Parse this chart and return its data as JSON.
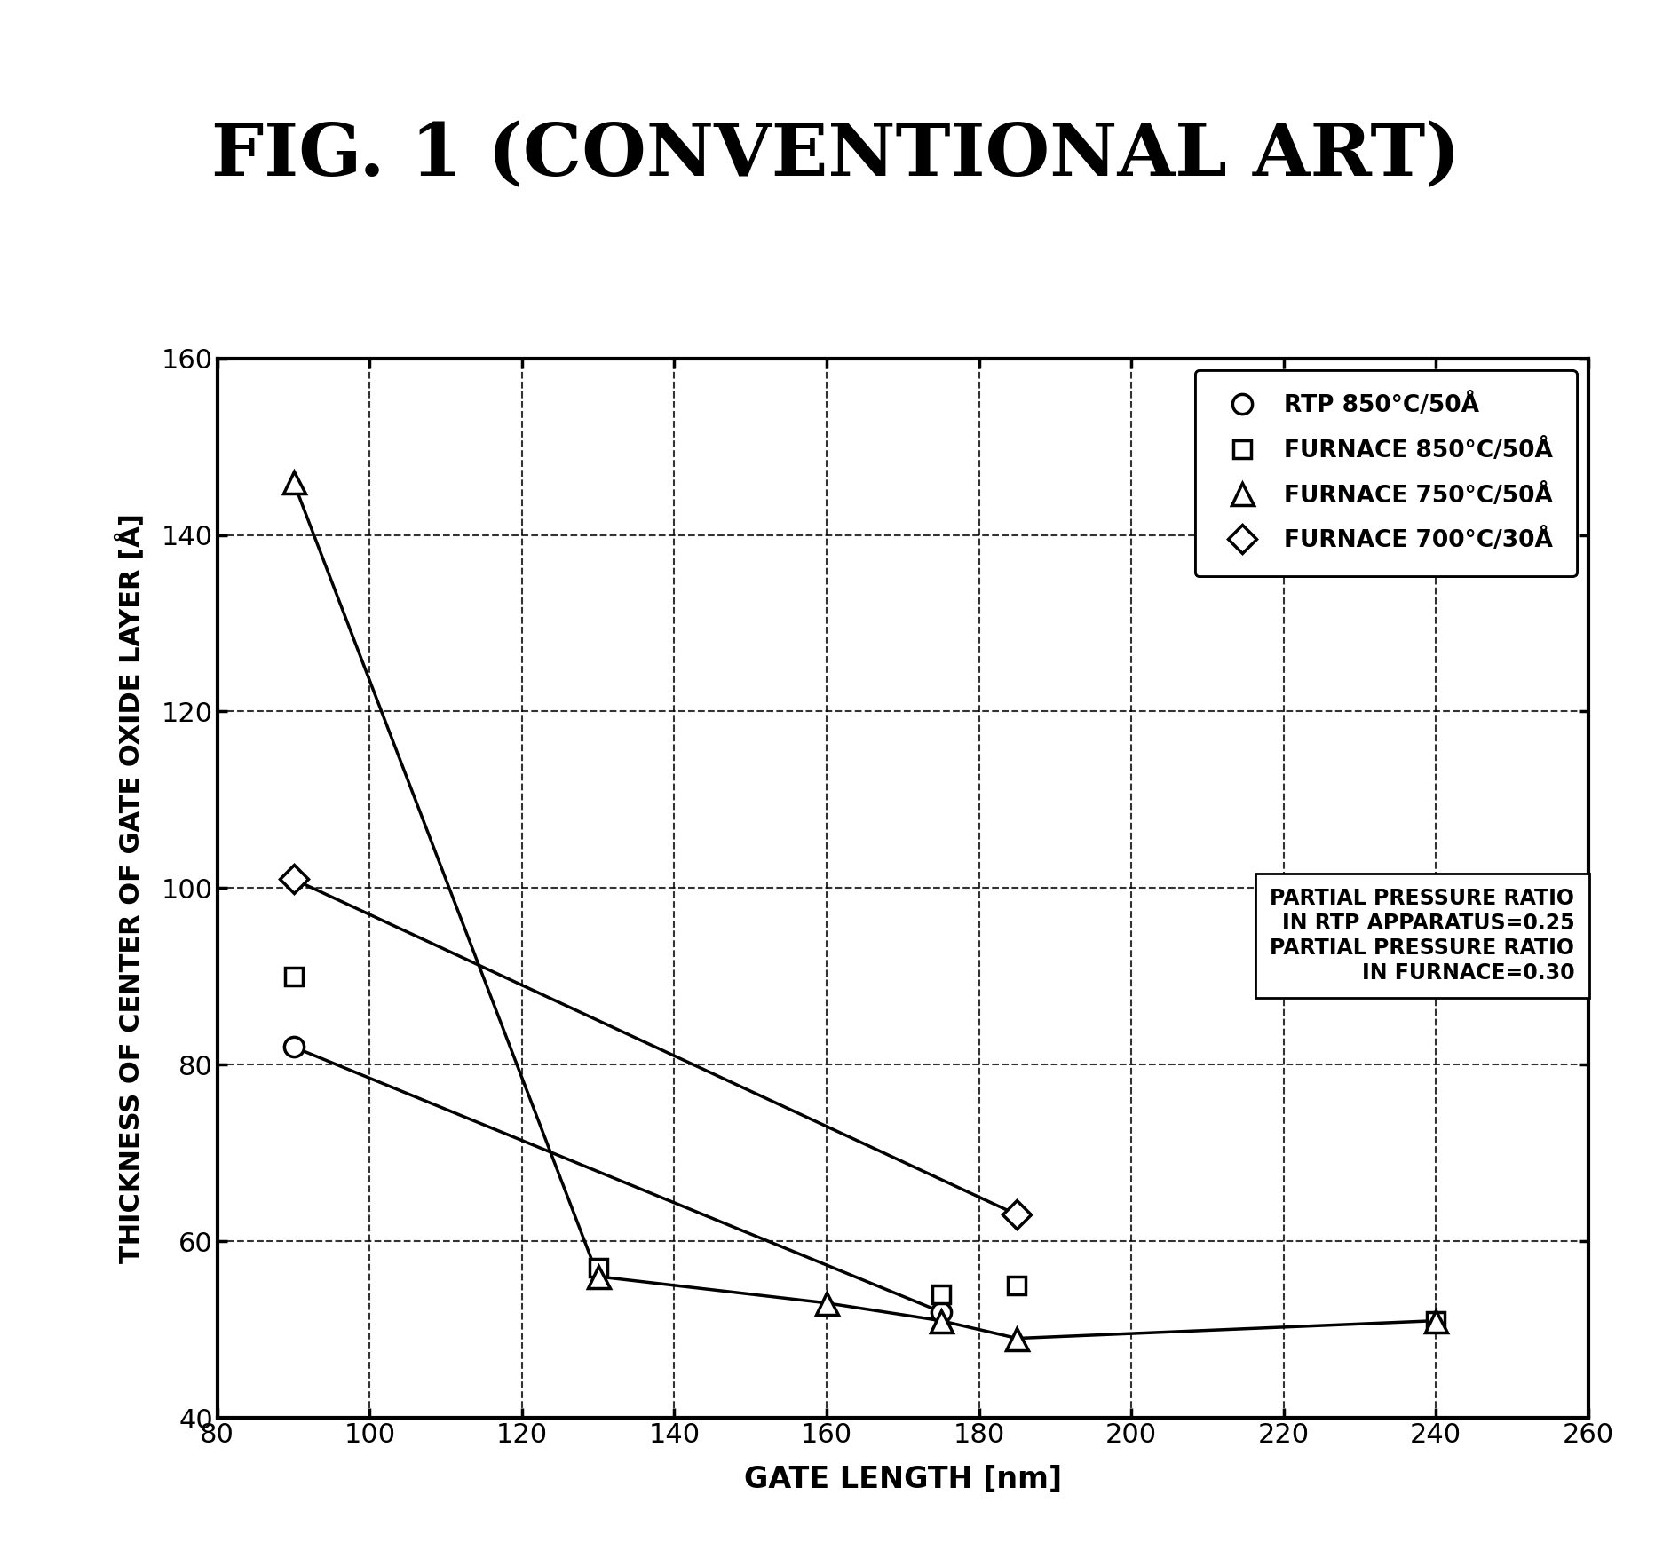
{
  "title": "FIG. 1 (CONVENTIONAL ART)",
  "xlabel": "GATE LENGTH [nm]",
  "ylabel": "THICKNESS OF CENTER OF GATE OXIDE LAYER [Å]",
  "xlim": [
    80,
    260
  ],
  "ylim": [
    40,
    160
  ],
  "xticks": [
    80,
    100,
    120,
    140,
    160,
    180,
    200,
    220,
    240,
    260
  ],
  "yticks": [
    40,
    60,
    80,
    100,
    120,
    140,
    160
  ],
  "series": [
    {
      "label": "RTP 850°C/50Å",
      "marker": "circle",
      "x": [
        90,
        175
      ],
      "y": [
        82,
        52
      ],
      "line": true
    },
    {
      "label": "FURNACE 850°C/50Å",
      "marker": "square",
      "x": [
        90,
        130,
        175,
        185,
        240
      ],
      "y": [
        90,
        57,
        54,
        55,
        51
      ],
      "line": false
    },
    {
      "label": "FURNACE 750°C/50Å",
      "marker": "triangle",
      "x": [
        90,
        130,
        160,
        175,
        185,
        240
      ],
      "y": [
        146,
        56,
        53,
        51,
        49,
        51
      ],
      "line": true
    },
    {
      "label": "FURNACE 700°C/30Å",
      "marker": "diamond",
      "x": [
        90,
        185
      ],
      "y": [
        101,
        63
      ],
      "line": true
    }
  ],
  "annotation_box": "PARTIAL PRESSURE RATIO\nIN RTP APPARATUS=0.25\nPARTIAL PRESSURE RATIO\nIN FURNACE=0.30",
  "background_color": "#ffffff"
}
